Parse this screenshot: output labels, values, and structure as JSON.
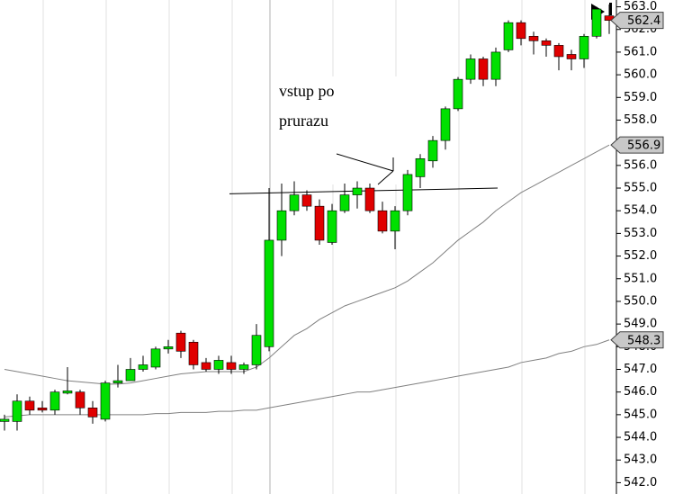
{
  "chart_data": {
    "type": "candlestick",
    "open": [
      544.7,
      544.7,
      545.6,
      545.3,
      545.2,
      545.95,
      546.0,
      545.3,
      544.8,
      546.4,
      546.5,
      547.0,
      547.1,
      547.9,
      548.6,
      548.2,
      547.3,
      547.0,
      547.3,
      547.0,
      547.2,
      548.0,
      552.7,
      554.0,
      554.7,
      554.2,
      552.6,
      554.0,
      554.7,
      555.0,
      554.0,
      553.1,
      554.0,
      555.5,
      556.2,
      557.1,
      558.5,
      559.8,
      560.7,
      559.8,
      561.1,
      562.3,
      561.7,
      561.5,
      561.3,
      560.9,
      560.7,
      561.7,
      562.6
    ],
    "high": [
      545.0,
      545.9,
      545.8,
      545.6,
      546.1,
      547.1,
      546.1,
      545.6,
      546.5,
      547.2,
      547.5,
      547.6,
      548.0,
      548.3,
      548.7,
      548.3,
      547.5,
      547.6,
      547.6,
      547.3,
      549.0,
      555.0,
      555.2,
      555.3,
      554.9,
      554.5,
      554.3,
      555.2,
      555.3,
      555.2,
      554.4,
      554.2,
      555.8,
      556.5,
      557.3,
      558.6,
      559.9,
      560.9,
      560.8,
      561.2,
      562.4,
      562.4,
      561.9,
      561.6,
      561.4,
      561.1,
      561.8,
      563.0,
      563.1
    ],
    "low": [
      544.3,
      544.3,
      545.0,
      545.1,
      545.0,
      545.9,
      545.0,
      544.6,
      544.7,
      546.2,
      546.5,
      546.9,
      547.0,
      547.7,
      547.5,
      547.0,
      546.9,
      546.8,
      546.8,
      546.8,
      547.0,
      547.8,
      552.0,
      553.8,
      554.0,
      552.5,
      552.5,
      553.9,
      554.1,
      553.9,
      553.0,
      552.3,
      553.8,
      555.0,
      555.9,
      556.7,
      558.4,
      559.6,
      559.5,
      559.5,
      561.0,
      561.3,
      560.9,
      560.8,
      560.2,
      560.2,
      560.3,
      561.6,
      561.8
    ],
    "close": [
      544.8,
      545.6,
      545.2,
      545.2,
      546.0,
      546.05,
      545.3,
      544.9,
      546.4,
      546.5,
      547.0,
      547.2,
      547.9,
      548.0,
      547.8,
      547.2,
      547.0,
      547.4,
      547.0,
      547.2,
      548.5,
      552.7,
      554.0,
      554.7,
      554.2,
      552.7,
      554.0,
      554.7,
      555.0,
      554.0,
      553.1,
      554.0,
      555.6,
      556.3,
      557.1,
      558.5,
      559.8,
      560.7,
      559.8,
      561.0,
      562.3,
      561.6,
      561.5,
      561.3,
      560.8,
      560.7,
      561.7,
      562.9,
      562.4
    ],
    "up_color": "#00e000",
    "down_color": "#e00000",
    "moving_averages": [
      {
        "color": "#808080",
        "values": [
          547.0,
          546.9,
          546.8,
          546.7,
          546.6,
          546.5,
          546.45,
          546.4,
          546.35,
          546.35,
          546.4,
          546.5,
          546.6,
          546.7,
          546.8,
          546.85,
          546.9,
          546.9,
          546.9,
          546.9,
          547.1,
          547.5,
          548.0,
          548.5,
          548.8,
          549.2,
          549.5,
          549.8,
          550.0,
          550.2,
          550.4,
          550.6,
          550.9,
          551.3,
          551.7,
          552.2,
          552.7,
          553.1,
          553.5,
          554.0,
          554.4,
          554.8,
          555.1,
          555.4,
          555.7,
          556.0,
          556.3,
          556.6,
          556.9
        ]
      },
      {
        "color": "#808080",
        "values": [
          544.9,
          544.95,
          545.0,
          545.0,
          545.0,
          545.0,
          545.0,
          545.0,
          545.0,
          545.0,
          545.0,
          545.0,
          545.05,
          545.05,
          545.1,
          545.1,
          545.1,
          545.15,
          545.15,
          545.2,
          545.2,
          545.3,
          545.4,
          545.5,
          545.6,
          545.7,
          545.8,
          545.9,
          546.0,
          546.0,
          546.1,
          546.2,
          546.3,
          546.4,
          546.5,
          546.6,
          546.7,
          546.8,
          546.9,
          547.0,
          547.1,
          547.3,
          547.4,
          547.5,
          547.7,
          547.8,
          548.0,
          548.1,
          548.3
        ]
      }
    ],
    "price_tags": [
      562.4,
      556.9,
      548.3
    ],
    "level_line": [
      554.75,
      555.0
    ],
    "annotation": [
      "vstup po",
      "prurazu"
    ],
    "ylim": [
      541.5,
      563.3
    ],
    "yticks": [
      {
        "value": 542,
        "label": "542.0"
      },
      {
        "value": 543,
        "label": "543.0"
      },
      {
        "value": 544,
        "label": "544.0"
      },
      {
        "value": 545,
        "label": "545.0"
      },
      {
        "value": 546,
        "label": "546.0"
      },
      {
        "value": 547,
        "label": "547.0"
      },
      {
        "value": 548,
        "label": "548.0"
      },
      {
        "value": 549,
        "label": "549.0"
      },
      {
        "value": 550,
        "label": "550.0"
      },
      {
        "value": 551,
        "label": "551.0"
      },
      {
        "value": 552,
        "label": "552.0"
      },
      {
        "value": 553,
        "label": "553.0"
      },
      {
        "value": 554,
        "label": "554.0"
      },
      {
        "value": 555,
        "label": "555.0"
      },
      {
        "value": 556,
        "label": "556.0"
      },
      {
        "value": 557,
        "label": "557.0"
      },
      {
        "value": 558,
        "label": "558.0"
      },
      {
        "value": 559,
        "label": "559.0"
      },
      {
        "value": 560,
        "label": "560.0"
      },
      {
        "value": 561,
        "label": "561.0"
      },
      {
        "value": 562,
        "label": "562.0"
      },
      {
        "value": 563,
        "label": "563.0"
      }
    ]
  }
}
